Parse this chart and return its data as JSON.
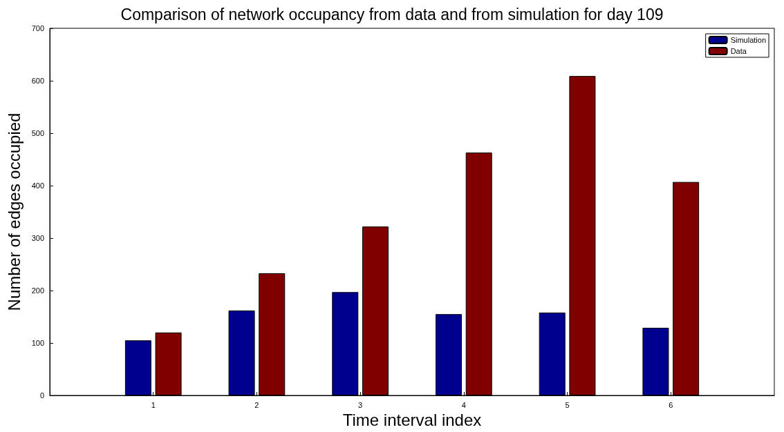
{
  "chart_data": {
    "type": "bar",
    "title": "Comparison of network occupancy from data and from simulation for day 109",
    "xlabel": "Time interval index",
    "ylabel": "Number of edges occupied",
    "x": [
      1,
      2,
      3,
      4,
      5,
      6
    ],
    "xlim": [
      0,
      7
    ],
    "xticks": [
      1,
      2,
      3,
      4,
      5,
      6
    ],
    "ylim": [
      0,
      700
    ],
    "yticks": [
      0,
      100,
      200,
      300,
      400,
      500,
      600,
      700
    ],
    "series": [
      {
        "name": "Simulation",
        "color": "#00008f",
        "values": [
          105,
          162,
          197,
          155,
          158,
          129
        ]
      },
      {
        "name": "Data",
        "color": "#800000",
        "values": [
          120,
          233,
          322,
          463,
          609,
          407
        ]
      }
    ],
    "legend": "top right",
    "grid": false
  }
}
